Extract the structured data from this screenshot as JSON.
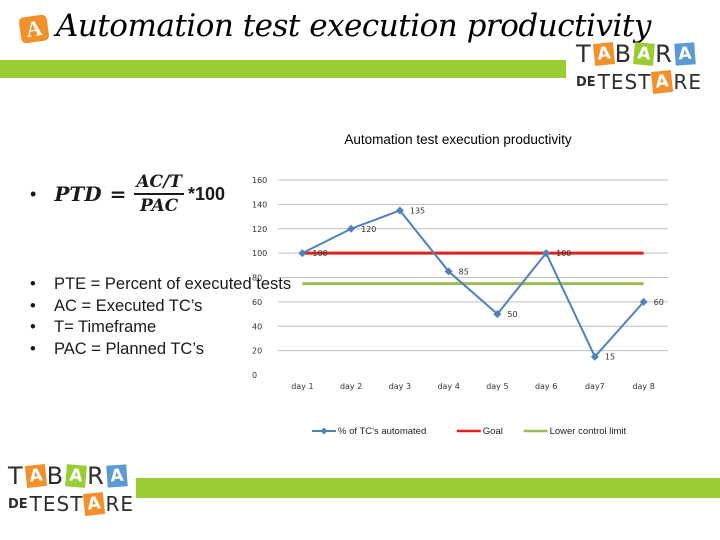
{
  "slide": {
    "title_badge": "A",
    "title": "Automation test execution productivity"
  },
  "logo": {
    "row1": [
      "T",
      "A",
      "B",
      "A",
      "R",
      "A"
    ],
    "de": "DE",
    "row2": [
      "T",
      "E",
      "S",
      "T",
      "A",
      "R",
      "E"
    ]
  },
  "formula": {
    "bullet": "•",
    "lhs": "PTD",
    "eq": "=",
    "numerator": "AC/T",
    "denominator": "PAC",
    "multiplier": "*100"
  },
  "definitions": [
    "PTE = Percent of executed tests",
    "AC = Executed TC’s",
    "T= Timeframe",
    "PAC = Planned TC’s"
  ],
  "colors": {
    "green_bar": "#9acd32",
    "orange": "#f2912b",
    "series_main": "#4f81bd",
    "goal": "#e0201b",
    "lcl": "#9bbb59"
  },
  "chart_data": {
    "type": "line",
    "title": "Automation test execution productivity",
    "categories": [
      "day 1",
      "day 2",
      "day 3",
      "day 4",
      "day 5",
      "day 6",
      "day7",
      "day 8"
    ],
    "ylim": [
      0,
      160
    ],
    "yticks": [
      0,
      20,
      40,
      60,
      80,
      100,
      120,
      140,
      160
    ],
    "grid": true,
    "legend_position": "bottom",
    "series": [
      {
        "name": "% of TC's automated",
        "values": [
          100,
          120,
          135,
          85,
          50,
          100,
          15,
          60
        ],
        "color": "#4f81bd",
        "markers": true,
        "data_labels": true
      },
      {
        "name": "Goal",
        "values": [
          100,
          100,
          100,
          100,
          100,
          100,
          100,
          100
        ],
        "color": "#e0201b",
        "markers": false,
        "data_labels": false
      },
      {
        "name": "Lower control limit",
        "values": [
          75,
          75,
          75,
          75,
          75,
          75,
          75,
          75
        ],
        "color": "#9bbb59",
        "markers": false,
        "data_labels": false
      }
    ]
  }
}
